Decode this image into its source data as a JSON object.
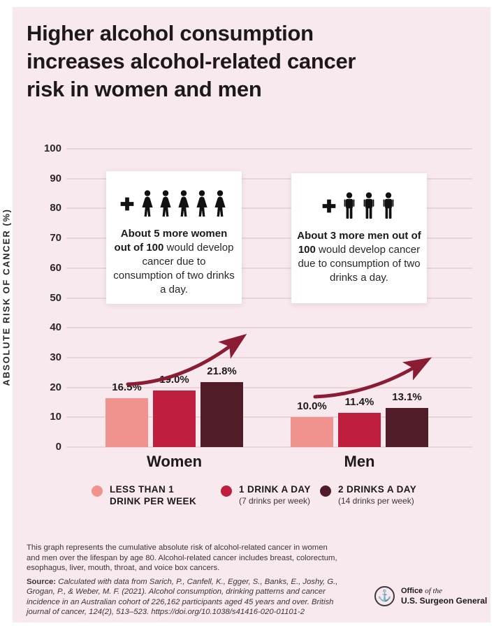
{
  "title": "Higher alcohol consumption increases alcohol-related cancer risk in women and men",
  "colors": {
    "background": "#f7e9ed",
    "gridline": "#e9d4da",
    "arrow": "#8a1c33",
    "bar_light": "#f0928e",
    "bar_mid": "#bf1e3e",
    "bar_dark": "#4f1c27"
  },
  "chart_data": {
    "type": "bar",
    "title": "",
    "xlabel": "",
    "ylabel": "ABSOLUTE RISK OF CANCER (%)",
    "ylim": [
      0,
      100
    ],
    "ytick_interval": 10,
    "grid": true,
    "legend_position": "bottom",
    "categories": [
      "Women",
      "Men"
    ],
    "series": [
      {
        "name": "LESS THAN 1 DRINK PER WEEK",
        "color": "#f0928e",
        "values": [
          16.5,
          10.0
        ],
        "labels": [
          "16.5%",
          "10.0%"
        ]
      },
      {
        "name": "1 DRINK A DAY (7 drinks per week)",
        "color": "#bf1e3e",
        "values": [
          19.0,
          11.4
        ],
        "labels": [
          "19.0%",
          "11.4%"
        ]
      },
      {
        "name": "2 DRINKS A DAY (14 drinks per week)",
        "color": "#4f1c27",
        "values": [
          21.8,
          13.1
        ],
        "labels": [
          "21.8%",
          "13.1%"
        ]
      }
    ]
  },
  "annotations": {
    "women": {
      "icon_count": 5,
      "bold_text": "About 5 more women out of 100",
      "regular_text": "would develop cancer due to consumption of two drinks a day."
    },
    "men": {
      "icon_count": 3,
      "bold_text": "About 3 more men out of 100",
      "regular_text": "would develop cancer due to consumption of two drinks a day."
    }
  },
  "legend": {
    "items": [
      {
        "line1": "LESS THAN 1",
        "line2": "DRINK PER WEEK",
        "sublabel": "",
        "color": "#f0928e"
      },
      {
        "line1": "1 DRINK A DAY",
        "line2": "",
        "sublabel": "(7 drinks per week)",
        "color": "#bf1e3e"
      },
      {
        "line1": "2 DRINKS A DAY",
        "line2": "",
        "sublabel": "(14 drinks per week)",
        "color": "#4f1c27"
      }
    ]
  },
  "footnote": {
    "description": "This graph represents the cumulative absolute risk of alcohol-related cancer in women and men over the lifespan by age 80. Alcohol-related cancer includes breast, colorectum, esophagus, liver, mouth, throat, and voice box cancers.",
    "source_label": "Source:",
    "source_text": "Calculated with data from Sarich, P., Canfell, K., Egger, S., Banks, E., Joshy, G., Grogan, P., & Weber, M. F. (2021). Alcohol consumption, drinking patterns and cancer incidence in an Australian cohort of 226,162 participants aged 45 years and over. British journal of cancer, 124(2), 513–523. https://doi.org/10.1038/s41416-020-01101-2"
  },
  "logo": {
    "seal_icon": "anchor-seal-icon",
    "line1_bold": "Office",
    "line1_italic": "of the",
    "line2": "U.S. Surgeon General"
  }
}
